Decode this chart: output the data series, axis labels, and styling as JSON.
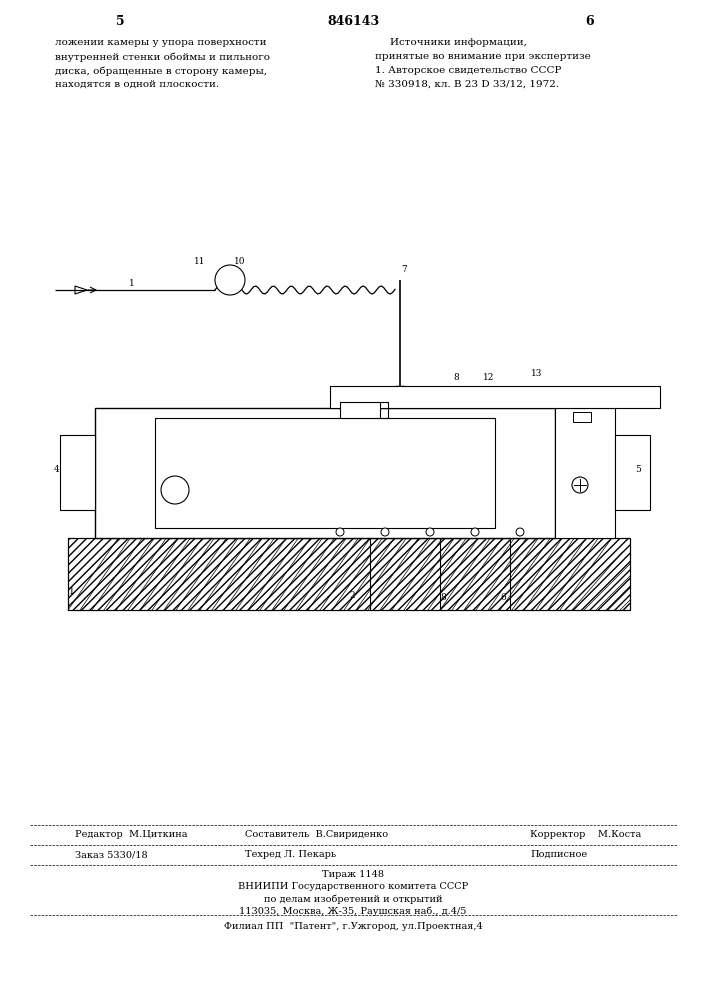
{
  "bg_color": "#ffffff",
  "page_width": 7.07,
  "page_height": 10.0,
  "header_num_left": "5",
  "header_num_center": "846143",
  "header_num_right": "6",
  "left_text": "ложении камеры у упора поверхности\nвнутренней стенки обоймы и пильного\nдиска, обращенные в сторону камеры,\nнаходятся в одной плоскости.",
  "right_text_title": "Источники информации,",
  "right_text_body": "принятые во внимание при экспертизе\n1. Авторское свидетельство СССР\n№ 330918, кл. В 23 D 33/12, 1972.",
  "footer_line1": "Редактор  М.Циткина",
  "footer_line2_left": "Составитель  В.Свириденко",
  "footer_line2_right": "Корректор    М.Коста",
  "footer_line3_left": "Техред Л. Пекарь",
  "footer_line4": "Заказ 5330/18",
  "footer_line4_right": "Подписное",
  "footer_line5": "Тираж 1148",
  "footer_line6": "ВНИИПИ Государственного комитета СССР",
  "footer_line7": "по делам изобретений и открытий",
  "footer_line8": "113035, Москва, Ж-35, Раушская наб., д.4/5",
  "footer_line9": "Филиал ПП  \"Патент\", г.Ужгород, ул.Проектная,4"
}
